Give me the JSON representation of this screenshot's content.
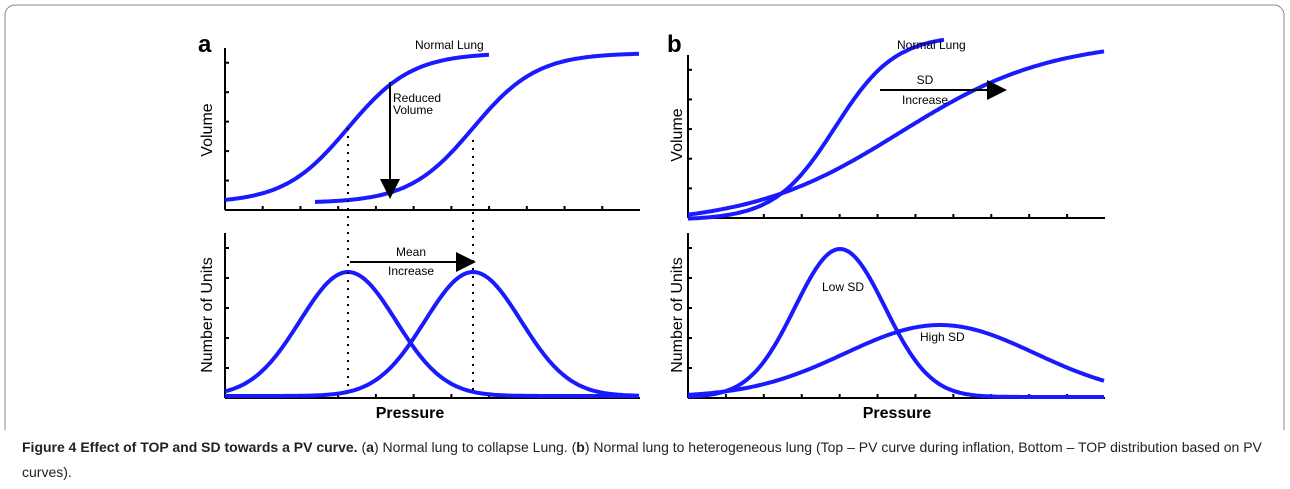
{
  "figure": {
    "panels": {
      "a": {
        "label": "a",
        "top": {
          "y_label": "Volume",
          "curve_label": "Normal Lung",
          "arrow_label": [
            "Reduced",
            "Volume"
          ]
        },
        "bottom": {
          "y_label": "Number of Units",
          "arrow_label": [
            "Mean",
            "Increase"
          ]
        },
        "x_label": "Pressure"
      },
      "b": {
        "label": "b",
        "top": {
          "y_label": "Volume",
          "curve_label": "Normal Lung",
          "arrow_label": [
            "SD",
            "Increase"
          ]
        },
        "bottom": {
          "y_label": "Number of Units",
          "low_label": "Low SD",
          "high_label": "High SD"
        },
        "x_label": "Pressure"
      }
    },
    "caption": {
      "title": "Figure 4 Effect of TOP and SD towards a PV curve.",
      "parts": [
        "(",
        "a",
        ") Normal lung to collapse Lung. (",
        "b",
        ") Normal lung to heterogeneous lung (Top – PV curve during inflation, Bottom – TOP distribution based on PV curves)."
      ]
    }
  }
}
